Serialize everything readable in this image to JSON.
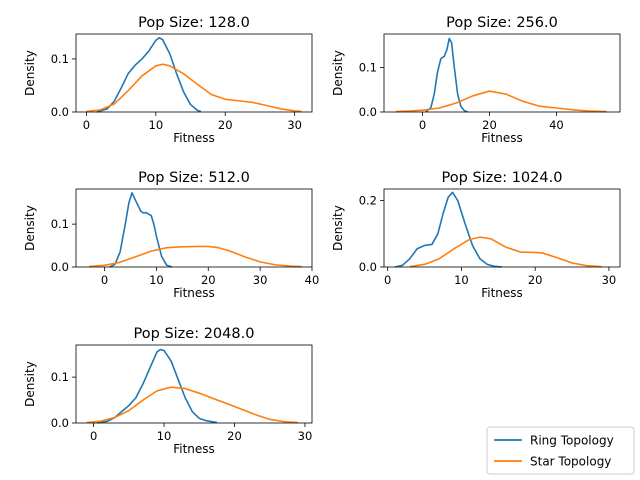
{
  "figure": {
    "legend": {
      "position": "bottom-right",
      "entries": [
        {
          "label": "Ring Topology",
          "color": "#1f77b4"
        },
        {
          "label": "Star Topology",
          "color": "#ff7f0e"
        }
      ]
    }
  },
  "chart_data": [
    {
      "type": "line",
      "title": "Pop Size: 128.0",
      "xlabel": "Fitness",
      "ylabel": "Density",
      "xlim": [
        -1.5,
        32.5
      ],
      "ylim": [
        0,
        0.147
      ],
      "xticks": [
        0,
        10,
        20,
        30
      ],
      "yticks": [
        0.0,
        0.1
      ],
      "ytick_labels": [
        "0.0",
        "0.1"
      ],
      "series": [
        {
          "name": "Ring Topology",
          "color": "#1f77b4",
          "x": [
            1.5,
            3,
            4,
            5,
            6,
            7,
            8,
            9,
            10,
            10.5,
            11,
            12,
            13,
            14,
            15,
            16,
            16.5
          ],
          "y": [
            0.0,
            0.006,
            0.02,
            0.045,
            0.072,
            0.088,
            0.1,
            0.115,
            0.135,
            0.14,
            0.136,
            0.11,
            0.072,
            0.038,
            0.014,
            0.003,
            0.001
          ]
        },
        {
          "name": "Star Topology",
          "color": "#ff7f0e",
          "x": [
            0,
            2,
            4,
            6,
            8,
            10,
            11,
            12,
            14,
            16,
            18,
            20,
            22,
            24,
            26,
            28,
            30,
            31
          ],
          "y": [
            0.001,
            0.004,
            0.015,
            0.04,
            0.068,
            0.087,
            0.09,
            0.087,
            0.072,
            0.052,
            0.033,
            0.024,
            0.021,
            0.018,
            0.012,
            0.006,
            0.002,
            0.001
          ]
        }
      ]
    },
    {
      "type": "line",
      "title": "Pop Size: 256.0",
      "xlabel": "Fitness",
      "ylabel": "Density",
      "xlim": [
        -11.5,
        59
      ],
      "ylim": [
        0,
        0.175
      ],
      "xticks": [
        0,
        20,
        40
      ],
      "yticks": [
        0.0,
        0.1
      ],
      "ytick_labels": [
        "0.0",
        "0.1"
      ],
      "series": [
        {
          "name": "Ring Topology",
          "color": "#1f77b4",
          "x": [
            1,
            2.5,
            3.5,
            4.5,
            5.5,
            6.5,
            7.3,
            8,
            8.7,
            9.5,
            10.5,
            11.5,
            12.5,
            13.5
          ],
          "y": [
            0.0,
            0.01,
            0.04,
            0.09,
            0.12,
            0.125,
            0.14,
            0.165,
            0.155,
            0.1,
            0.04,
            0.012,
            0.003,
            0.0
          ]
        },
        {
          "name": "Star Topology",
          "color": "#ff7f0e",
          "x": [
            -8,
            -4,
            0,
            5,
            10,
            15,
            20,
            25,
            30,
            35,
            40,
            45,
            50,
            55
          ],
          "y": [
            0.001,
            0.002,
            0.004,
            0.009,
            0.02,
            0.036,
            0.047,
            0.04,
            0.024,
            0.013,
            0.009,
            0.005,
            0.002,
            0.001
          ]
        }
      ]
    },
    {
      "type": "line",
      "title": "Pop Size: 512.0",
      "xlabel": "Fitness",
      "ylabel": "Density",
      "xlim": [
        -5.5,
        40
      ],
      "ylim": [
        0,
        0.182
      ],
      "xticks": [
        0,
        10,
        20,
        30,
        40
      ],
      "yticks": [
        0.0,
        0.1
      ],
      "ytick_labels": [
        "0.0",
        "0.1"
      ],
      "series": [
        {
          "name": "Ring Topology",
          "color": "#1f77b4",
          "x": [
            1,
            2,
            3,
            4,
            4.7,
            5.3,
            6,
            7,
            7.5,
            8,
            9,
            9.5,
            10,
            11,
            12,
            13
          ],
          "y": [
            0.0,
            0.006,
            0.035,
            0.1,
            0.15,
            0.173,
            0.155,
            0.13,
            0.126,
            0.127,
            0.12,
            0.1,
            0.072,
            0.025,
            0.004,
            0.0
          ]
        },
        {
          "name": "Star Topology",
          "color": "#ff7f0e",
          "x": [
            -3,
            0,
            3,
            6,
            9,
            12,
            15,
            18,
            20,
            22,
            24,
            27,
            30,
            33,
            36,
            38
          ],
          "y": [
            0.001,
            0.004,
            0.011,
            0.024,
            0.037,
            0.045,
            0.047,
            0.048,
            0.048,
            0.045,
            0.038,
            0.024,
            0.012,
            0.005,
            0.002,
            0.001
          ]
        }
      ]
    },
    {
      "type": "line",
      "title": "Pop Size: 1024.0",
      "xlabel": "Fitness",
      "ylabel": "Density",
      "xlim": [
        -0.5,
        31.5
      ],
      "ylim": [
        0,
        0.235
      ],
      "xticks": [
        0,
        10,
        20,
        30
      ],
      "yticks": [
        0.0,
        0.2
      ],
      "ytick_labels": [
        "0.0",
        "0.2"
      ],
      "series": [
        {
          "name": "Ring Topology",
          "color": "#1f77b4",
          "x": [
            1,
            2,
            3,
            4,
            5,
            6,
            6.8,
            7.5,
            8.2,
            8.8,
            9.5,
            10.5,
            11.5,
            12.5,
            13.5,
            14.5,
            15.5
          ],
          "y": [
            0.0,
            0.005,
            0.025,
            0.055,
            0.065,
            0.068,
            0.1,
            0.16,
            0.21,
            0.225,
            0.2,
            0.13,
            0.065,
            0.025,
            0.008,
            0.002,
            0.0
          ]
        },
        {
          "name": "Star Topology",
          "color": "#ff7f0e",
          "x": [
            3,
            5,
            7,
            9,
            11,
            12.5,
            14,
            16,
            18,
            20,
            21,
            23,
            25,
            27,
            29
          ],
          "y": [
            0.001,
            0.008,
            0.025,
            0.055,
            0.082,
            0.09,
            0.085,
            0.06,
            0.045,
            0.044,
            0.042,
            0.028,
            0.012,
            0.004,
            0.001
          ]
        }
      ]
    },
    {
      "type": "line",
      "title": "Pop Size: 2048.0",
      "xlabel": "Fitness",
      "ylabel": "Density",
      "xlim": [
        -2.5,
        31
      ],
      "ylim": [
        0,
        0.17
      ],
      "xticks": [
        0,
        10,
        20,
        30
      ],
      "yticks": [
        0.0,
        0.1
      ],
      "ytick_labels": [
        "0.0",
        "0.1"
      ],
      "series": [
        {
          "name": "Ring Topology",
          "color": "#1f77b4",
          "x": [
            0.5,
            2,
            3,
            4,
            5,
            6,
            7,
            8,
            9,
            9.5,
            10,
            11,
            12,
            13,
            14,
            15,
            16,
            17.5
          ],
          "y": [
            0.0,
            0.004,
            0.012,
            0.025,
            0.038,
            0.055,
            0.085,
            0.12,
            0.155,
            0.16,
            0.158,
            0.135,
            0.095,
            0.055,
            0.025,
            0.01,
            0.005,
            0.001
          ]
        },
        {
          "name": "Star Topology",
          "color": "#ff7f0e",
          "x": [
            -1,
            1,
            3,
            5,
            7,
            9,
            11,
            13,
            15,
            17,
            19,
            21,
            23,
            25,
            27,
            29
          ],
          "y": [
            0.001,
            0.004,
            0.012,
            0.027,
            0.05,
            0.07,
            0.078,
            0.075,
            0.065,
            0.053,
            0.042,
            0.03,
            0.018,
            0.008,
            0.003,
            0.001
          ]
        }
      ]
    }
  ]
}
